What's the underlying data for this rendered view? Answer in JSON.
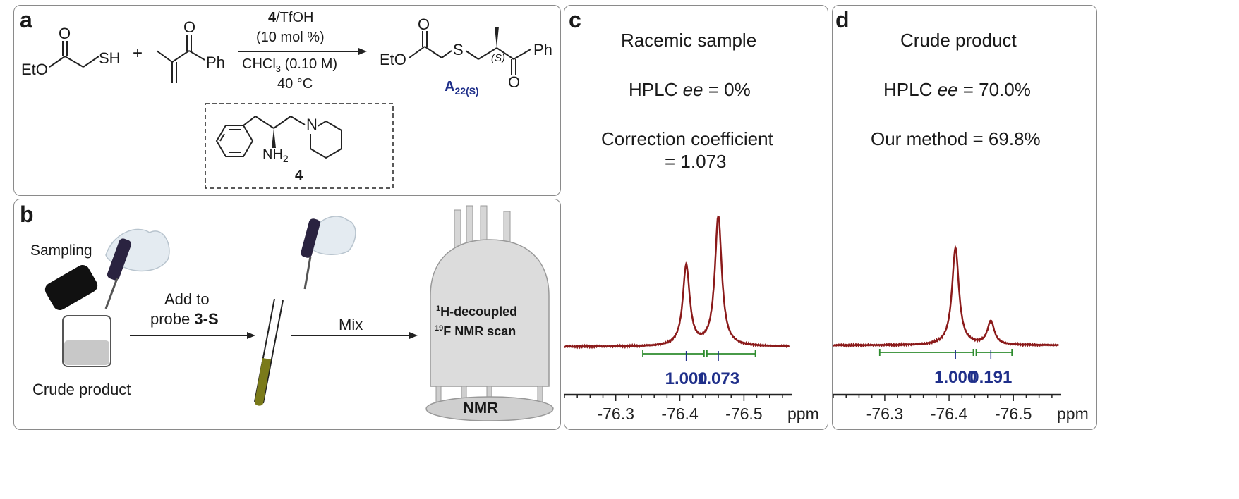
{
  "panel_a": {
    "label": "a",
    "reactant1": {
      "eto": "EtO",
      "o": "O",
      "sh": "SH"
    },
    "plus": "+",
    "reactant2": {
      "o": "O",
      "ph": "Ph"
    },
    "conditions": {
      "catalyst_num": "4",
      "catalyst_acid": "/TfOH",
      "loading": "(10 mol %)",
      "solvent": "CHCl",
      "solvent_sub": "3",
      "concentration": " (0.10 M)",
      "temperature": "40 °C"
    },
    "product": {
      "eto": "EtO",
      "o_ester": "O",
      "s": "S",
      "stereo": "(S)",
      "o_ketone": "O",
      "ph": "Ph",
      "label_main": "A",
      "label_sub": "22(S)"
    },
    "catalyst": {
      "n": "N",
      "nh2": "NH",
      "nh2_sub": "2",
      "label": "4"
    }
  },
  "panel_b": {
    "label": "b",
    "sampling": "Sampling",
    "add_line1": "Add to",
    "add_line2_prefix": "probe ",
    "add_line2_bold": "3-S",
    "mix": "Mix",
    "crude": "Crude product",
    "nmr_line1_sup": "1",
    "nmr_line1": "H-decoupled",
    "nmr_line2_sup": "19",
    "nmr_line2": "F NMR scan",
    "nmr_label": "NMR"
  },
  "panel_c": {
    "label": "c",
    "title": "Racemic sample",
    "hplc_prefix": "HPLC ",
    "hplc_ee": "ee",
    "hplc_value": " = 0%",
    "coef_line1": "Correction coefficient",
    "coef_line2": "= 1.073",
    "integrals": [
      "1.000",
      "1.073"
    ],
    "ticks": [
      "-76.3",
      "-76.4",
      "-76.5"
    ],
    "unit": "ppm"
  },
  "panel_d": {
    "label": "d",
    "title": "Crude product",
    "hplc_prefix": "HPLC ",
    "hplc_ee": "ee",
    "hplc_value": " = 70.0%",
    "method": "Our method = 69.8%",
    "integrals": [
      "1.000",
      "0.191"
    ],
    "ticks": [
      "-76.3",
      "-76.4",
      "-76.5"
    ],
    "unit": "ppm"
  },
  "colors": {
    "spectrum": "#8b1a1a",
    "integral": "#2e8b2e",
    "integral_value": "#1f2f8a",
    "product_label": "#1f2f8a",
    "tube_fill": "#7a7a1a"
  },
  "chart_data": [
    {
      "type": "line",
      "title": "Racemic sample",
      "xlabel": "ppm",
      "xlim": [
        -76.22,
        -76.57
      ],
      "x_ticks": [
        -76.3,
        -76.4,
        -76.5
      ],
      "peaks": [
        {
          "x": -76.41,
          "height": 0.62,
          "integral": 1.0
        },
        {
          "x": -76.46,
          "height": 1.0,
          "integral": 1.073
        }
      ],
      "integral_ranges": [
        [
          -76.34,
          -76.44
        ],
        [
          -76.44,
          -76.52
        ]
      ]
    },
    {
      "type": "line",
      "title": "Crude product",
      "xlabel": "ppm",
      "xlim": [
        -76.22,
        -76.57
      ],
      "x_ticks": [
        -76.3,
        -76.4,
        -76.5
      ],
      "peaks": [
        {
          "x": -76.41,
          "height": 1.0,
          "integral": 1.0
        },
        {
          "x": -76.465,
          "height": 0.24,
          "integral": 0.191
        }
      ],
      "integral_ranges": [
        [
          -76.29,
          -76.44
        ],
        [
          -76.44,
          -76.5
        ]
      ]
    }
  ]
}
